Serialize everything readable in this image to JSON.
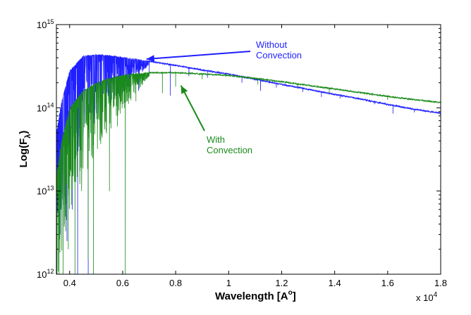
{
  "chart_data": {
    "type": "line",
    "title": "",
    "xlabel": "Wavelength [A",
    "xlabel_sup": "o",
    "xlabel_tail": "]",
    "x_multiplier": "x 10",
    "x_multiplier_exp": "4",
    "ylabel": "Log(F",
    "ylabel_sub": "λ",
    "ylabel_tail": ")",
    "xlim": [
      3500,
      18000
    ],
    "ylim": [
      1000000000000.0,
      1000000000000000.0
    ],
    "yscale": "log",
    "grid": false,
    "x_ticks": [
      {
        "value": 4000,
        "label": "0.4"
      },
      {
        "value": 6000,
        "label": "0.6"
      },
      {
        "value": 8000,
        "label": "0.8"
      },
      {
        "value": 10000,
        "label": "1"
      },
      {
        "value": 12000,
        "label": "1.2"
      },
      {
        "value": 14000,
        "label": "1.4"
      },
      {
        "value": 16000,
        "label": "1.6"
      },
      {
        "value": 18000,
        "label": "1.8"
      }
    ],
    "y_ticks": [
      {
        "value": 1000000000000.0,
        "base": "10",
        "exp": "12"
      },
      {
        "value": 10000000000000.0,
        "base": "10",
        "exp": "13"
      },
      {
        "value": 100000000000000.0,
        "base": "10",
        "exp": "14"
      },
      {
        "value": 1000000000000000.0,
        "base": "10",
        "exp": "15"
      }
    ],
    "series": [
      {
        "name": "Without Convection",
        "color": "#1f1fff",
        "continuum": [
          [
            3500,
            50000000000000.0
          ],
          [
            3700,
            120000000000000.0
          ],
          [
            4000,
            280000000000000.0
          ],
          [
            4500,
            420000000000000.0
          ],
          [
            5000,
            440000000000000.0
          ],
          [
            5500,
            430000000000000.0
          ],
          [
            6000,
            410000000000000.0
          ],
          [
            6500,
            390000000000000.0
          ],
          [
            7000,
            370000000000000.0
          ],
          [
            8000,
            330000000000000.0
          ],
          [
            9000,
            290000000000000.0
          ],
          [
            10000,
            260000000000000.0
          ],
          [
            11000,
            225000000000000.0
          ],
          [
            12000,
            195000000000000.0
          ],
          [
            13000,
            170000000000000.0
          ],
          [
            14000,
            148000000000000.0
          ],
          [
            15000,
            130000000000000.0
          ],
          [
            16000,
            112000000000000.0
          ],
          [
            17000,
            98000000000000.0
          ],
          [
            18000,
            88000000000000.0
          ]
        ],
        "absorption_lines": [
          [
            3650,
            3000000000000.0
          ],
          [
            3800,
            4000000000000.0
          ],
          [
            3900,
            2500000000000.0
          ],
          [
            4100,
            6000000000000.0
          ],
          [
            4300,
            1000000000000.0
          ],
          [
            4500,
            30000000000000.0
          ],
          [
            4700,
            1000000000000.0
          ],
          [
            4900,
            50000000000000.0
          ],
          [
            5200,
            80000000000000.0
          ],
          [
            5500,
            120000000000000.0
          ],
          [
            5900,
            150000000000000.0
          ],
          [
            6300,
            180000000000000.0
          ],
          [
            6600,
            160000000000000.0
          ],
          [
            7000,
            260000000000000.0
          ],
          [
            7800,
            140000000000000.0
          ],
          [
            8500,
            240000000000000.0
          ],
          [
            9200,
            230000000000000.0
          ],
          [
            10500,
            200000000000000.0
          ],
          [
            11200,
            160000000000000.0
          ],
          [
            11800,
            175000000000000.0
          ],
          [
            12800,
            155000000000000.0
          ],
          [
            13500,
            135000000000000.0
          ],
          [
            14200,
            130000000000000.0
          ],
          [
            15500,
            110000000000000.0
          ],
          [
            16200,
            85000000000000.0
          ],
          [
            17000,
            88000000000000.0
          ]
        ]
      },
      {
        "name": "With Convection",
        "color": "#1a8a1a",
        "continuum": [
          [
            3500,
            15000000000000.0
          ],
          [
            3700,
            40000000000000.0
          ],
          [
            4000,
            100000000000000.0
          ],
          [
            4500,
            160000000000000.0
          ],
          [
            5000,
            200000000000000.0
          ],
          [
            5500,
            230000000000000.0
          ],
          [
            6000,
            250000000000000.0
          ],
          [
            6500,
            260000000000000.0
          ],
          [
            7000,
            270000000000000.0
          ],
          [
            8000,
            270000000000000.0
          ],
          [
            9000,
            260000000000000.0
          ],
          [
            10000,
            250000000000000.0
          ],
          [
            11000,
            230000000000000.0
          ],
          [
            12000,
            210000000000000.0
          ],
          [
            13000,
            190000000000000.0
          ],
          [
            14000,
            172000000000000.0
          ],
          [
            15000,
            155000000000000.0
          ],
          [
            16000,
            140000000000000.0
          ],
          [
            17000,
            128000000000000.0
          ],
          [
            18000,
            118000000000000.0
          ]
        ],
        "absorption_lines": [
          [
            3600,
            1000000000000.0
          ],
          [
            3750,
            1000000000000.0
          ],
          [
            3950,
            2000000000000.0
          ],
          [
            4200,
            1000000000000.0
          ],
          [
            4450,
            10000000000000.0
          ],
          [
            4700,
            1500000000000.0
          ],
          [
            4900,
            1000000000000.0
          ],
          [
            5200,
            50000000000000.0
          ],
          [
            5500,
            10000000000000.0
          ],
          [
            5800,
            60000000000000.0
          ],
          [
            6100,
            1000000000000.0
          ],
          [
            6500,
            120000000000000.0
          ],
          [
            7500,
            150000000000000.0
          ],
          [
            8000,
            180000000000000.0
          ],
          [
            9000,
            220000000000000.0
          ],
          [
            11100,
            190000000000000.0
          ],
          [
            12600,
            175000000000000.0
          ],
          [
            13800,
            150000000000000.0
          ],
          [
            15400,
            140000000000000.0
          ],
          [
            16000,
            125000000000000.0
          ]
        ]
      }
    ],
    "annotations": [
      {
        "lines": [
          "Without",
          "Convection"
        ],
        "color": "#1f1fff",
        "arrow_to": [
          6900,
          385000000000000.0
        ]
      },
      {
        "lines": [
          "With",
          "Convection"
        ],
        "color": "#1a8a1a",
        "arrow_to": [
          8200,
          185000000000000.0
        ]
      }
    ]
  }
}
